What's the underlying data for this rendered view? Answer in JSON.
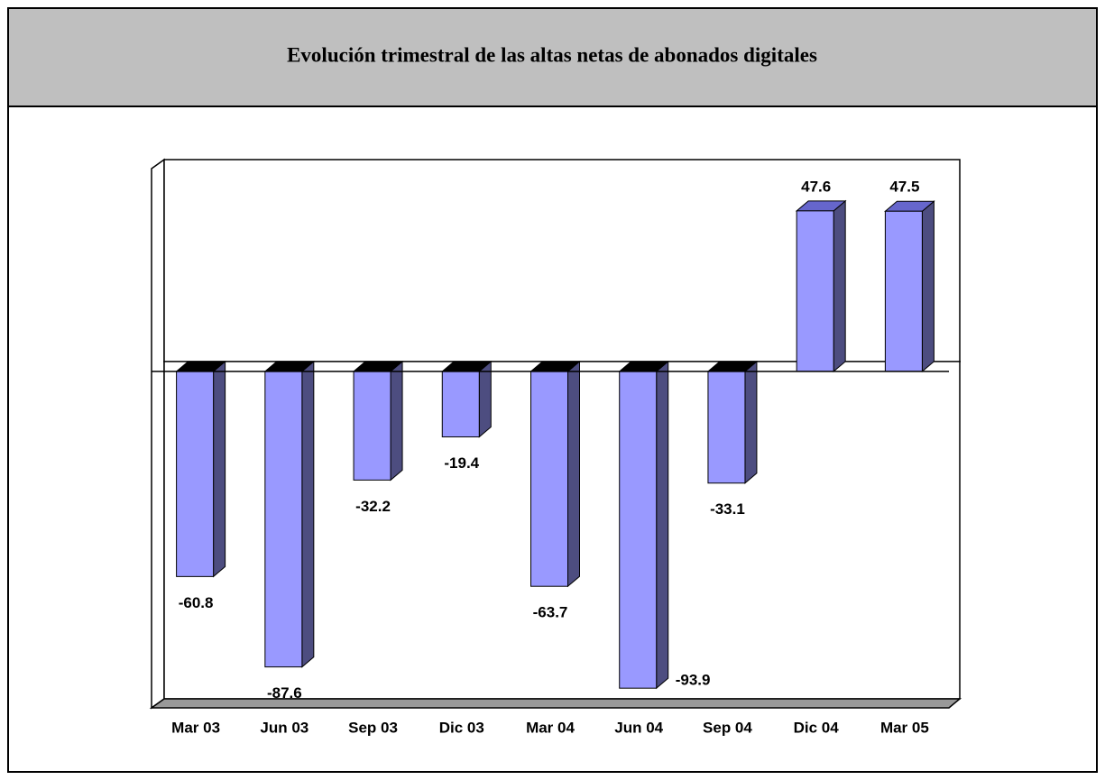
{
  "chart_data": {
    "type": "bar3d",
    "title": "Evolución trimestral de las altas netas de abonados digitales",
    "categories": [
      "Mar 03",
      "Jun 03",
      "Sep 03",
      "Dic 03",
      "Mar 04",
      "Jun 04",
      "Sep 04",
      "Dic 04",
      "Mar 05"
    ],
    "values": [
      -60.8,
      -87.6,
      -32.2,
      -19.4,
      -63.7,
      -93.9,
      -33.1,
      47.6,
      47.5
    ],
    "color": "#9999ff",
    "ylim": [
      -100,
      62.8
    ]
  }
}
